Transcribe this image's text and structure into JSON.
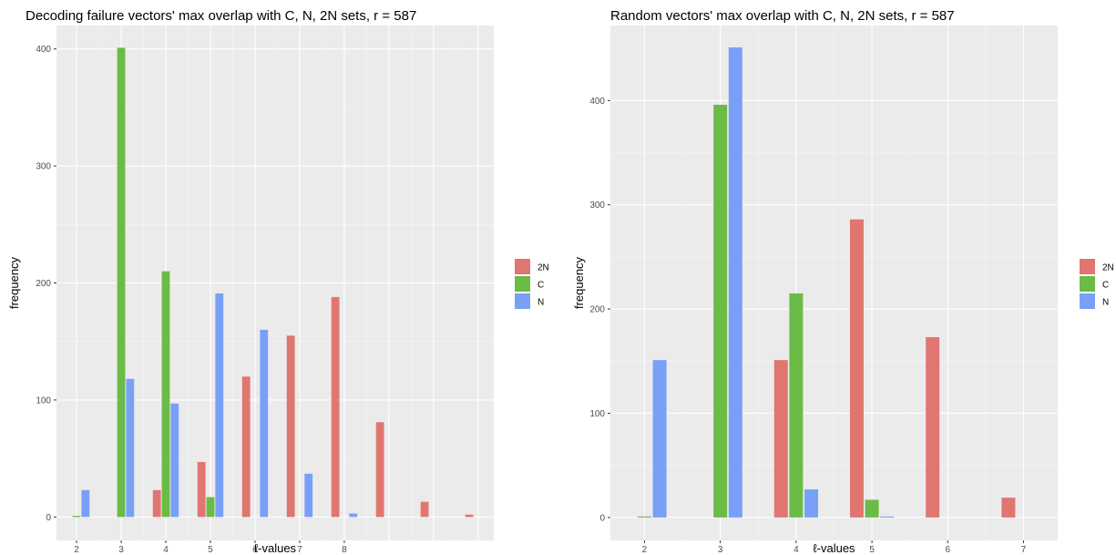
{
  "colors": {
    "2N": "#E07670",
    "C": "#6BBB47",
    "N": "#79A0F7",
    "panel": "#EBEBEB",
    "grid_major": "#FFFFFF"
  },
  "chart_data": [
    {
      "type": "bar",
      "title": "Decoding failure vectors' max overlap with C, N, 2N sets, r = 587",
      "xlabel": "ℓ-values",
      "ylabel": "frequency",
      "x_tick_labels": [
        "2",
        "3",
        "4",
        "5",
        "6",
        "7",
        "8"
      ],
      "y_ticks": [
        0,
        100,
        200,
        300,
        400
      ],
      "xlim": [
        1.55,
        11.35
      ],
      "ylim": [
        -20,
        420
      ],
      "legend": {
        "position": "right",
        "entries": [
          "2N",
          "C",
          "N"
        ]
      },
      "bar_width": 0.18,
      "grid": true,
      "series": [
        {
          "name": "2N",
          "points": [
            [
              3.8,
              23
            ],
            [
              4.8,
              47
            ],
            [
              5.8,
              120
            ],
            [
              6.8,
              155
            ],
            [
              7.8,
              188
            ],
            [
              8.8,
              81
            ],
            [
              9.8,
              13
            ],
            [
              10.8,
              2
            ]
          ]
        },
        {
          "name": "C",
          "points": [
            [
              2.0,
              1
            ],
            [
              3.0,
              401
            ],
            [
              4.0,
              210
            ],
            [
              5.0,
              17
            ]
          ]
        },
        {
          "name": "N",
          "points": [
            [
              2.2,
              23
            ],
            [
              3.2,
              118
            ],
            [
              4.2,
              97
            ],
            [
              5.2,
              191
            ],
            [
              6.2,
              160
            ],
            [
              7.2,
              37
            ],
            [
              8.2,
              3
            ]
          ]
        }
      ]
    },
    {
      "type": "bar",
      "title": "Random vectors' max overlap with C, N, 2N sets, r = 587",
      "xlabel": "ℓ-values",
      "ylabel": "frequency",
      "x_tick_labels": [
        "2",
        "3",
        "4",
        "5",
        "6",
        "7"
      ],
      "y_ticks": [
        0,
        100,
        200,
        300,
        400
      ],
      "xlim": [
        1.55,
        7.45
      ],
      "ylim": [
        -22,
        472
      ],
      "legend": {
        "position": "right",
        "entries": [
          "2N",
          "C",
          "N"
        ]
      },
      "bar_width": 0.18,
      "grid": true,
      "series": [
        {
          "name": "2N",
          "points": [
            [
              3.8,
              151
            ],
            [
              4.8,
              286
            ],
            [
              5.8,
              173
            ],
            [
              6.8,
              19
            ]
          ]
        },
        {
          "name": "C",
          "points": [
            [
              2.0,
              1
            ],
            [
              3.0,
              396
            ],
            [
              4.0,
              215
            ],
            [
              5.0,
              17
            ]
          ]
        },
        {
          "name": "N",
          "points": [
            [
              2.2,
              151
            ],
            [
              3.2,
              451
            ],
            [
              4.2,
              27
            ],
            [
              5.2,
              1
            ]
          ]
        }
      ]
    }
  ]
}
